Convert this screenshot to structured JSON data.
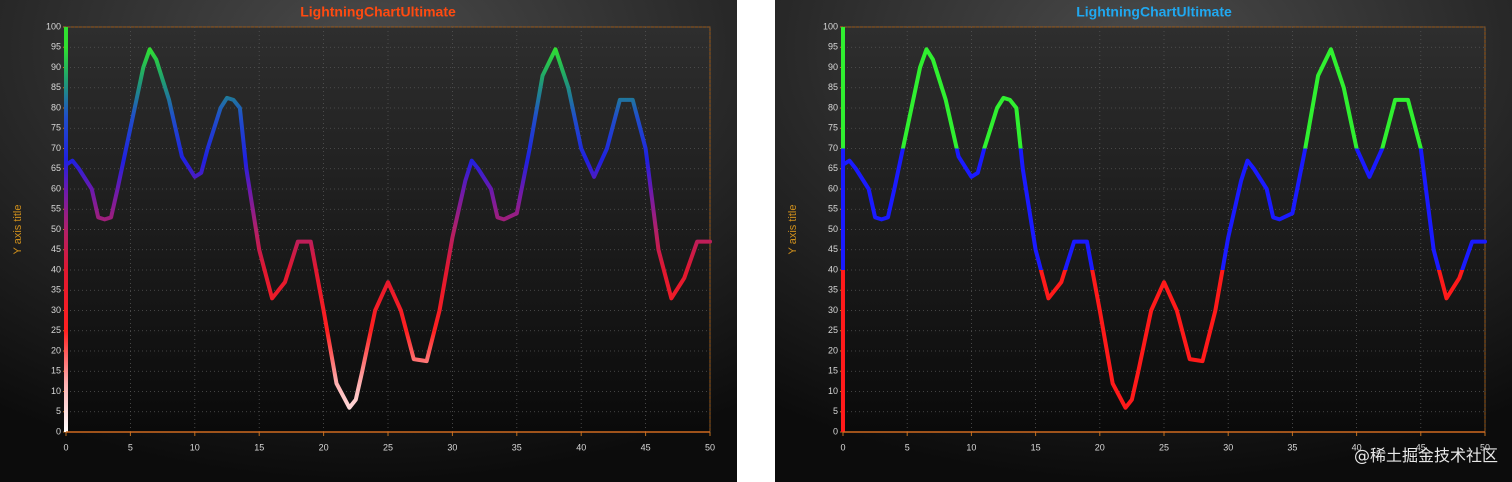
{
  "chart_data": [
    {
      "type": "line",
      "title": "LightningChartUltimate",
      "title_color": "#ff4a10",
      "y_label": "Y axis title",
      "x": [
        0,
        0.5,
        1,
        2,
        2.5,
        3,
        3.5,
        4,
        5,
        6,
        6.5,
        7,
        8,
        9,
        10,
        10.5,
        11,
        12,
        12.5,
        13,
        13.5,
        14,
        15,
        16,
        17,
        18,
        19,
        20,
        21,
        22,
        22.5,
        23,
        24,
        25,
        26,
        27,
        28,
        29,
        30,
        31,
        31.5,
        32,
        33,
        33.5,
        34,
        35,
        36,
        37,
        38,
        39,
        40,
        41,
        42,
        43,
        44,
        45,
        46,
        47,
        48,
        49,
        50
      ],
      "values": [
        66,
        67,
        65,
        60,
        53,
        52.5,
        53,
        60,
        75,
        90,
        94.5,
        92,
        82,
        68,
        63,
        64,
        70,
        80,
        82.5,
        82,
        80,
        65,
        45,
        33,
        37,
        47,
        47,
        30,
        12,
        6,
        8,
        15,
        30,
        37,
        30,
        18,
        17.5,
        30,
        48,
        62,
        67,
        65,
        60,
        53,
        52.5,
        54,
        70,
        88,
        94.5,
        85,
        70,
        63,
        70,
        82,
        82,
        70,
        45,
        33,
        38,
        47,
        47
      ],
      "color_stops": [
        {
          "value": 0,
          "color": "#ffffff"
        },
        {
          "value": 12,
          "color": "#ffb0b0"
        },
        {
          "value": 25,
          "color": "#ff2020"
        },
        {
          "value": 40,
          "color": "#e01830"
        },
        {
          "value": 50,
          "color": "#b0206a"
        },
        {
          "value": 60,
          "color": "#6a1ab0"
        },
        {
          "value": 67,
          "color": "#2020e0"
        },
        {
          "value": 78,
          "color": "#2050c8"
        },
        {
          "value": 87,
          "color": "#20a070"
        },
        {
          "value": 95,
          "color": "#30e030"
        }
      ],
      "xlim": [
        0,
        50
      ],
      "xticks": [
        0,
        5,
        10,
        15,
        20,
        25,
        30,
        35,
        40,
        45,
        50
      ],
      "ylim": [
        0,
        100
      ],
      "yticks": [
        0,
        5,
        10,
        15,
        20,
        25,
        30,
        35,
        40,
        45,
        50,
        55,
        60,
        65,
        70,
        75,
        80,
        85,
        90,
        95,
        100
      ],
      "grid": true
    },
    {
      "type": "line",
      "title": "LightningChartUltimate",
      "title_color": "#20a8f0",
      "y_label": "Y axis title",
      "x": [
        0,
        0.5,
        1,
        2,
        2.5,
        3,
        3.5,
        4,
        5,
        6,
        6.5,
        7,
        8,
        9,
        10,
        10.5,
        11,
        12,
        12.5,
        13,
        13.5,
        14,
        15,
        16,
        17,
        18,
        19,
        20,
        21,
        22,
        22.5,
        23,
        24,
        25,
        26,
        27,
        28,
        29,
        30,
        31,
        31.5,
        32,
        33,
        33.5,
        34,
        35,
        36,
        37,
        38,
        39,
        40,
        41,
        42,
        43,
        44,
        45,
        46,
        47,
        48,
        49,
        50
      ],
      "values": [
        66,
        67,
        65,
        60,
        53,
        52.5,
        53,
        60,
        75,
        90,
        94.5,
        92,
        82,
        68,
        63,
        64,
        70,
        80,
        82.5,
        82,
        80,
        65,
        45,
        33,
        37,
        47,
        47,
        30,
        12,
        6,
        8,
        15,
        30,
        37,
        30,
        18,
        17.5,
        30,
        48,
        62,
        67,
        65,
        60,
        53,
        52.5,
        54,
        70,
        88,
        94.5,
        85,
        70,
        63,
        70,
        82,
        82,
        70,
        45,
        33,
        38,
        47,
        47
      ],
      "color_stops": [
        {
          "value": 0,
          "color": "#ff1a1a"
        },
        {
          "value": 40,
          "color": "#ff1a1a"
        },
        {
          "value": 40,
          "color": "#1a1aff"
        },
        {
          "value": 70,
          "color": "#1a1aff"
        },
        {
          "value": 70,
          "color": "#30f030"
        },
        {
          "value": 100,
          "color": "#30f030"
        }
      ],
      "xlim": [
        0,
        50
      ],
      "xticks": [
        0,
        5,
        10,
        15,
        20,
        25,
        30,
        35,
        40,
        45,
        50
      ],
      "ylim": [
        0,
        100
      ],
      "yticks": [
        0,
        5,
        10,
        15,
        20,
        25,
        30,
        35,
        40,
        45,
        50,
        55,
        60,
        65,
        70,
        75,
        80,
        85,
        90,
        95,
        100
      ],
      "grid": true
    }
  ],
  "watermark": "@稀土掘金技术社区"
}
